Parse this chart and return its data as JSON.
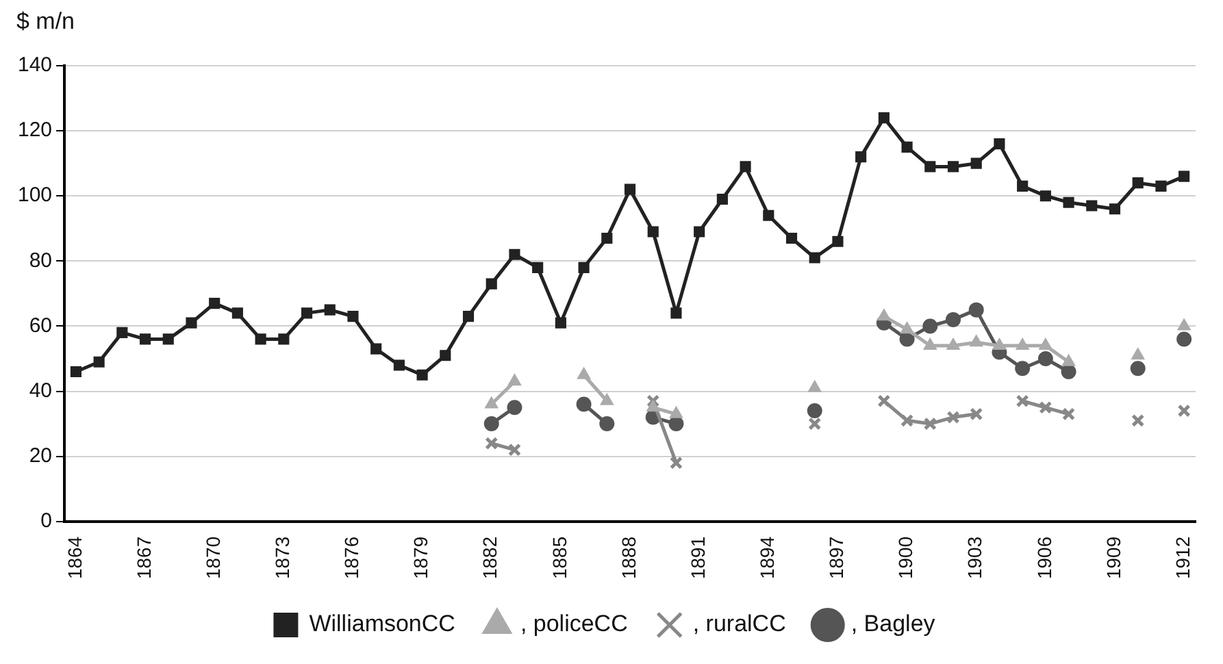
{
  "chart_data": {
    "type": "line",
    "ylabel": "$ m/n",
    "x": [
      1864,
      1865,
      1866,
      1867,
      1868,
      1869,
      1870,
      1871,
      1872,
      1873,
      1874,
      1875,
      1876,
      1877,
      1878,
      1879,
      1880,
      1881,
      1882,
      1883,
      1884,
      1885,
      1886,
      1887,
      1888,
      1889,
      1890,
      1891,
      1892,
      1893,
      1894,
      1895,
      1896,
      1897,
      1898,
      1899,
      1900,
      1901,
      1902,
      1903,
      1904,
      1905,
      1906,
      1907,
      1908,
      1909,
      1910,
      1911,
      1912
    ],
    "series": [
      {
        "name": "WilliamsonCC",
        "color": "#222222",
        "marker": "square",
        "values": [
          46,
          49,
          58,
          56,
          56,
          61,
          67,
          64,
          56,
          56,
          64,
          65,
          63,
          53,
          48,
          45,
          51,
          63,
          73,
          82,
          78,
          61,
          78,
          87,
          102,
          89,
          64,
          89,
          99,
          109,
          94,
          87,
          81,
          86,
          112,
          124,
          115,
          109,
          109,
          110,
          116,
          103,
          100,
          98,
          97,
          96,
          104,
          103,
          106
        ]
      },
      {
        "name": ", policeCC",
        "color": "#aaaaaa",
        "marker": "triangle",
        "values": [
          null,
          null,
          null,
          null,
          null,
          null,
          null,
          null,
          null,
          null,
          null,
          null,
          null,
          null,
          null,
          null,
          null,
          null,
          36,
          43,
          null,
          null,
          45,
          37,
          null,
          35,
          33,
          null,
          null,
          null,
          null,
          null,
          41,
          null,
          null,
          63,
          59,
          54,
          54,
          55,
          54,
          54,
          54,
          49,
          null,
          null,
          51,
          null,
          60
        ]
      },
      {
        "name": ", ruralCC",
        "color": "#888888",
        "marker": "cross",
        "values": [
          null,
          null,
          null,
          null,
          null,
          null,
          null,
          null,
          null,
          null,
          null,
          null,
          null,
          null,
          null,
          null,
          null,
          null,
          24,
          22,
          null,
          null,
          null,
          null,
          null,
          37,
          18,
          null,
          null,
          null,
          null,
          null,
          30,
          null,
          null,
          37,
          31,
          30,
          32,
          33,
          null,
          37,
          35,
          33,
          null,
          null,
          31,
          null,
          34
        ]
      },
      {
        "name": ", Bagley",
        "color": "#555555",
        "marker": "circle",
        "values": [
          null,
          null,
          null,
          null,
          null,
          null,
          null,
          null,
          null,
          null,
          null,
          null,
          null,
          null,
          null,
          null,
          null,
          null,
          30,
          35,
          null,
          null,
          36,
          30,
          null,
          32,
          30,
          null,
          null,
          null,
          null,
          null,
          34,
          null,
          null,
          61,
          56,
          60,
          62,
          65,
          52,
          47,
          50,
          46,
          null,
          null,
          47,
          null,
          56
        ]
      }
    ],
    "xlim": [
      1863.5,
      1912.5
    ],
    "xticks": [
      1864,
      1867,
      1870,
      1873,
      1876,
      1879,
      1882,
      1885,
      1888,
      1891,
      1894,
      1897,
      1900,
      1903,
      1906,
      1909,
      1912
    ],
    "ylim": [
      0,
      140
    ],
    "yticks": [
      0,
      20,
      40,
      60,
      80,
      100,
      120,
      140
    ],
    "grid": "y",
    "legend": "bottom",
    "line_style": "solid"
  }
}
